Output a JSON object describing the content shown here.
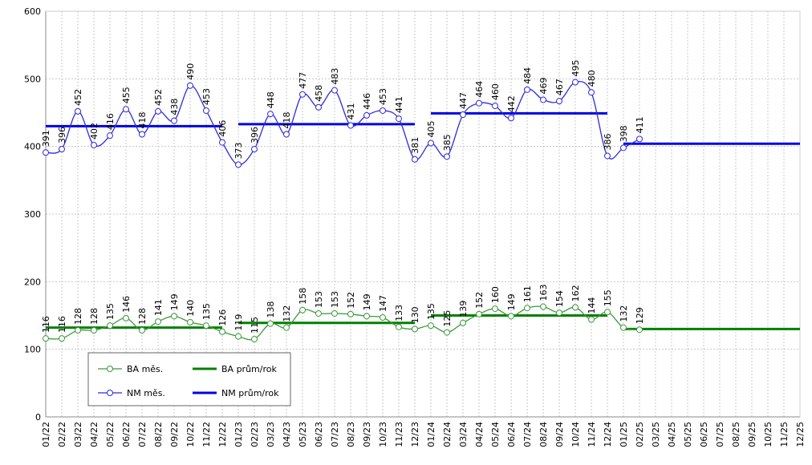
{
  "chart_data": {
    "type": "line",
    "categories": [
      "01/22",
      "02/22",
      "03/22",
      "04/22",
      "05/22",
      "06/22",
      "07/22",
      "08/22",
      "09/22",
      "10/22",
      "11/22",
      "12/22",
      "01/23",
      "02/23",
      "03/23",
      "04/23",
      "05/23",
      "06/23",
      "07/23",
      "08/23",
      "09/23",
      "10/23",
      "11/23",
      "12/23",
      "01/24",
      "02/24",
      "03/24",
      "04/24",
      "05/24",
      "06/24",
      "07/24",
      "08/24",
      "09/24",
      "10/24",
      "11/24",
      "12/24",
      "01/25",
      "02/25",
      "03/25",
      "04/25",
      "05/25",
      "06/25",
      "07/25",
      "08/25",
      "09/25",
      "10/25",
      "11/25",
      "12/25"
    ],
    "series": [
      {
        "name": "BA měs.",
        "color": "#3a9a3a",
        "values": [
          116,
          116,
          128,
          128,
          135,
          146,
          128,
          141,
          149,
          140,
          135,
          126,
          119,
          115,
          138,
          132,
          158,
          153,
          153,
          152,
          149,
          147,
          133,
          130,
          135,
          125,
          139,
          152,
          160,
          149,
          161,
          163,
          154,
          162,
          144,
          155,
          132,
          129,
          null,
          null,
          null,
          null,
          null,
          null,
          null,
          null,
          null,
          null
        ]
      },
      {
        "name": "NM měs.",
        "color": "#2b2bdc",
        "values": [
          391,
          396,
          452,
          402,
          416,
          455,
          418,
          452,
          438,
          490,
          453,
          406,
          373,
          396,
          448,
          418,
          477,
          458,
          483,
          431,
          446,
          453,
          441,
          381,
          405,
          385,
          447,
          464,
          460,
          442,
          484,
          469,
          467,
          495,
          480,
          386,
          398,
          411,
          null,
          null,
          null,
          null,
          null,
          null,
          null,
          null,
          null,
          null
        ]
      }
    ],
    "averages": [
      {
        "name": "BA prům/rok",
        "color": "#008000",
        "segments": [
          {
            "start": "01/22",
            "end": "12/22",
            "value": 132
          },
          {
            "start": "01/23",
            "end": "12/23",
            "value": 139
          },
          {
            "start": "01/24",
            "end": "12/24",
            "value": 150
          },
          {
            "start": "01/25",
            "end": "12/25",
            "value": 130
          }
        ]
      },
      {
        "name": "NM prům/rok",
        "color": "#0000e6",
        "segments": [
          {
            "start": "01/22",
            "end": "12/22",
            "value": 430
          },
          {
            "start": "01/23",
            "end": "12/23",
            "value": 433
          },
          {
            "start": "01/24",
            "end": "12/24",
            "value": 449
          },
          {
            "start": "01/25",
            "end": "12/25",
            "value": 404
          }
        ]
      }
    ],
    "ylim": [
      0,
      600
    ],
    "yticks": [
      0,
      100,
      200,
      300,
      400,
      500,
      600
    ],
    "grid": true
  }
}
